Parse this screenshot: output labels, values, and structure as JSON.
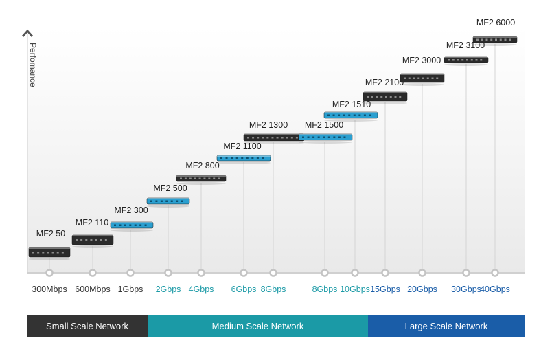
{
  "chart_data": {
    "type": "bar",
    "title": "",
    "ylabel": "Perfomance",
    "xlabel": "",
    "grid": false,
    "ylim": [
      0,
      15
    ],
    "colors": {
      "small": "#333333",
      "medium": "#1b9aa6",
      "large": "#1a5da8",
      "device_dark": "#2b2b2b",
      "device_blue": "#2a9fd0"
    },
    "devices": [
      {
        "name": "MF2 50",
        "throughput": "300Mbps",
        "level": 1,
        "style": "dark",
        "tier": "small"
      },
      {
        "name": "MF2 110",
        "throughput": "600Mbps",
        "level": 2,
        "style": "dark",
        "tier": "small"
      },
      {
        "name": "MF2 300",
        "throughput": "1Gbps",
        "level": 3,
        "style": "blue",
        "tier": "small"
      },
      {
        "name": "MF2 500",
        "throughput": "2Gbps",
        "level": 4,
        "style": "blue",
        "tier": "medium"
      },
      {
        "name": "MF2 800",
        "throughput": "4Gbps",
        "level": 5,
        "style": "dark",
        "tier": "medium"
      },
      {
        "name": "MF2 1100",
        "throughput": "6Gbps",
        "level": 6,
        "style": "blue",
        "tier": "medium"
      },
      {
        "name": "MF2 1300",
        "throughput": "8Gbps",
        "level": 7,
        "style": "dark",
        "tier": "medium"
      },
      {
        "name": "MF2 1500",
        "throughput": "8Gbps",
        "level": 7,
        "style": "blue",
        "tier": "medium"
      },
      {
        "name": "MF2 1510",
        "throughput": "10Gbps",
        "level": 8,
        "style": "blue",
        "tier": "medium"
      },
      {
        "name": "MF2 2100",
        "throughput": "15Gbps",
        "level": 9,
        "style": "dark",
        "tier": "large"
      },
      {
        "name": "MF2 3000",
        "throughput": "20Gbps",
        "level": 10,
        "style": "dark",
        "tier": "large"
      },
      {
        "name": "MF2 3100",
        "throughput": "30Gbps",
        "level": 11,
        "style": "dark",
        "tier": "large"
      },
      {
        "name": "MF2 6000",
        "throughput": "40Gbps",
        "level": 12,
        "style": "dark",
        "tier": "large"
      }
    ],
    "segments": [
      {
        "label": "Small Scale Network",
        "tier": "small"
      },
      {
        "label": "Medium Scale Network",
        "tier": "medium"
      },
      {
        "label": "Large Scale Network",
        "tier": "large"
      }
    ]
  }
}
